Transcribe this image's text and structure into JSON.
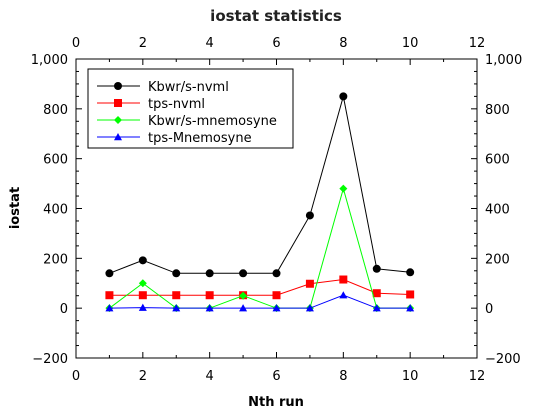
{
  "chart_data": {
    "type": "line",
    "title": "iostat statistics",
    "xlabel": "Nth run",
    "ylabel": "iostat",
    "xlim": [
      0,
      12
    ],
    "ylim": [
      -200,
      1000
    ],
    "x_ticks": [
      "0",
      "2",
      "4",
      "6",
      "8",
      "10",
      "12"
    ],
    "y_ticks": [
      "−200",
      "0",
      "200",
      "400",
      "600",
      "800",
      "1,000"
    ],
    "x_tick_values": [
      0,
      2,
      4,
      6,
      8,
      10,
      12
    ],
    "y_tick_values": [
      -200,
      0,
      200,
      400,
      600,
      800,
      1000
    ],
    "grid": false,
    "legend_position": "top-left",
    "x": [
      1,
      2,
      3,
      4,
      5,
      6,
      7,
      8,
      9,
      10
    ],
    "series": [
      {
        "name": "Kbwr/s-nvml",
        "color": "#000000",
        "marker": "circle",
        "values": [
          140,
          192,
          140,
          140,
          140,
          140,
          372,
          850,
          158,
          144
        ]
      },
      {
        "name": "tps-nvml",
        "color": "#ff0000",
        "marker": "square",
        "values": [
          52,
          52,
          52,
          52,
          52,
          52,
          98,
          115,
          60,
          55
        ]
      },
      {
        "name": "Kbwr/s-mnemosyne",
        "color": "#00ff00",
        "marker": "diamond",
        "values": [
          0,
          100,
          0,
          0,
          50,
          0,
          0,
          480,
          0,
          0
        ]
      },
      {
        "name": "tps-Mnemosyne",
        "color": "#0000ff",
        "marker": "triangle",
        "values": [
          0,
          2,
          0,
          0,
          0,
          0,
          0,
          52,
          0,
          0
        ]
      }
    ]
  }
}
